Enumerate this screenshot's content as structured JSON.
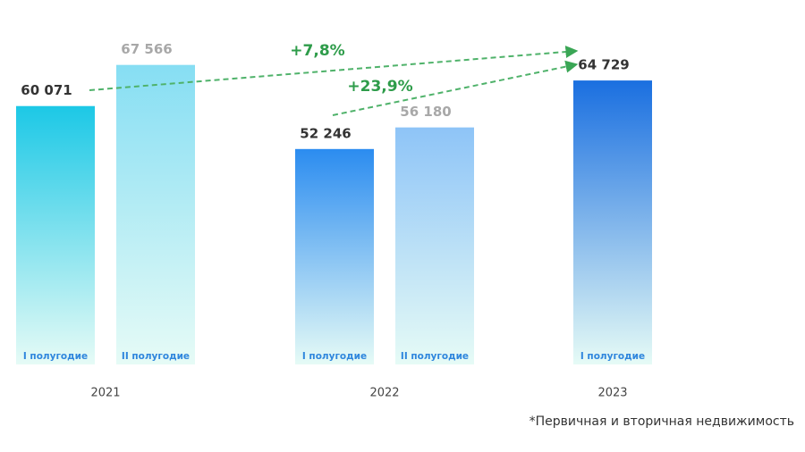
{
  "chart_data": {
    "type": "bar",
    "categories": [
      "2021",
      "2022",
      "2023"
    ],
    "series": [
      {
        "name": "I полугодие",
        "values": [
          60071,
          52246,
          64729
        ],
        "value_labels": [
          "60 071",
          "52 246",
          "64 729"
        ],
        "colors": [
          "#1cc8e6",
          "#2b8cf0",
          "#1a6fe0"
        ],
        "label_color": "#333333"
      },
      {
        "name": "II полугодие",
        "values": [
          67566,
          56180,
          null
        ],
        "value_labels": [
          "67 566",
          "56 180",
          null
        ],
        "colors": [
          "#86def3",
          "#8ec4f7",
          null
        ],
        "label_color": "#a8a8a8"
      }
    ],
    "ylim": [
      13000,
      68000
    ],
    "annotations": [
      "+7,8%",
      "+23,9%"
    ],
    "footnote": "*Первичная и вторичная недвижимость"
  }
}
